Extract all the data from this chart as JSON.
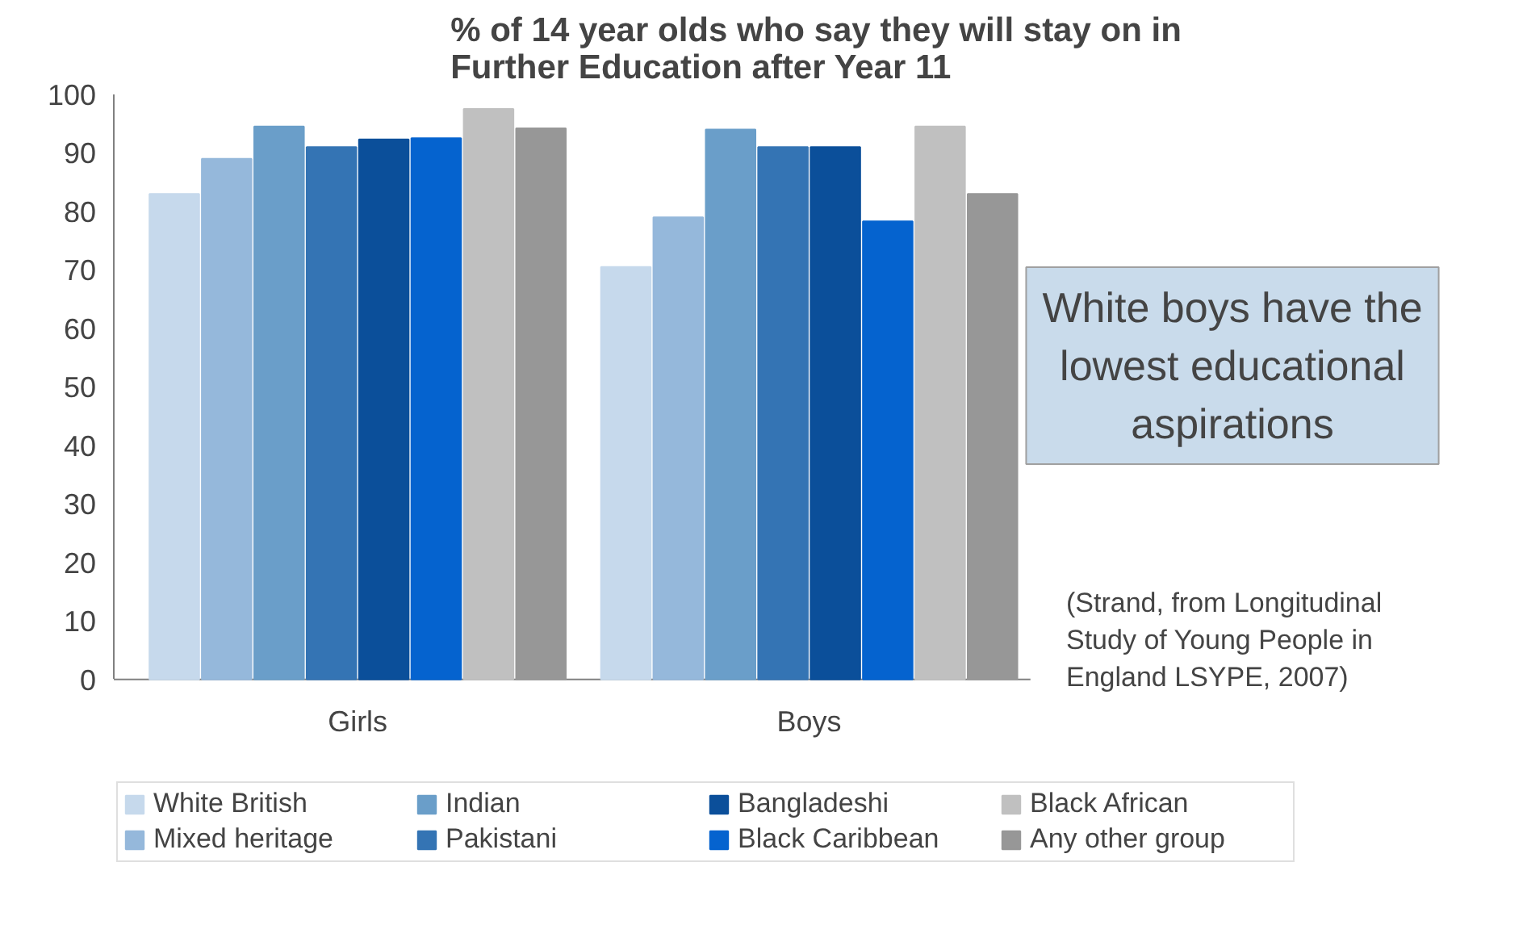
{
  "chart_data": {
    "type": "bar",
    "title": "% of 14 year olds who say they will stay on in Further Education after Year 11",
    "categories": [
      "Girls",
      "Boys"
    ],
    "series": [
      {
        "name": "White British",
        "color": "#c6d9ec",
        "values": [
          83,
          70.5
        ]
      },
      {
        "name": "Mixed heritage",
        "color": "#95b8db",
        "values": [
          89,
          79
        ]
      },
      {
        "name": "Indian",
        "color": "#6a9ec9",
        "values": [
          94.5,
          94
        ]
      },
      {
        "name": "Pakistani",
        "color": "#3474b4",
        "values": [
          91,
          91
        ]
      },
      {
        "name": "Bangladeshi",
        "color": "#0b4f9a",
        "values": [
          92.3,
          91
        ]
      },
      {
        "name": "Black Caribbean",
        "color": "#0563cf",
        "values": [
          92.5,
          78.3
        ]
      },
      {
        "name": "Black African",
        "color": "#c0c0c0",
        "values": [
          97.5,
          94.5
        ]
      },
      {
        "name": "Any other group",
        "color": "#979797",
        "values": [
          94.2,
          83
        ]
      }
    ],
    "ylim": [
      0,
      100
    ],
    "yticks": [
      0,
      10,
      20,
      30,
      40,
      50,
      60,
      70,
      80,
      90,
      100
    ],
    "grid": false,
    "legend": "bottom",
    "annotations": [
      "White boys have the lowest educational aspirations",
      "(Strand, from Longitudinal Study  of Young People in England LSYPE, 2007)"
    ]
  }
}
